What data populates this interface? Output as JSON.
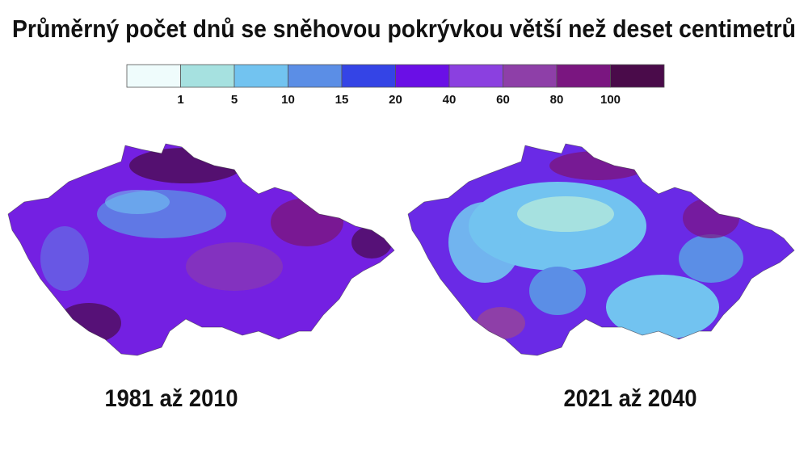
{
  "title": "Průměrný počet dnů se sněhovou pokrývkou větší než deset centimetrů",
  "legend": {
    "colors": [
      "#effcfc",
      "#a6e1e0",
      "#72c3f0",
      "#5b8ee6",
      "#3444e6",
      "#6a0fe6",
      "#8b40e0",
      "#8e3fa8",
      "#7a1680",
      "#4a0b4a"
    ],
    "breaks": [
      1,
      5,
      10,
      15,
      20,
      40,
      60,
      80,
      100
    ]
  },
  "maps": [
    {
      "caption": "1981 až 2010"
    },
    {
      "caption": "2021 až 2040"
    }
  ]
}
